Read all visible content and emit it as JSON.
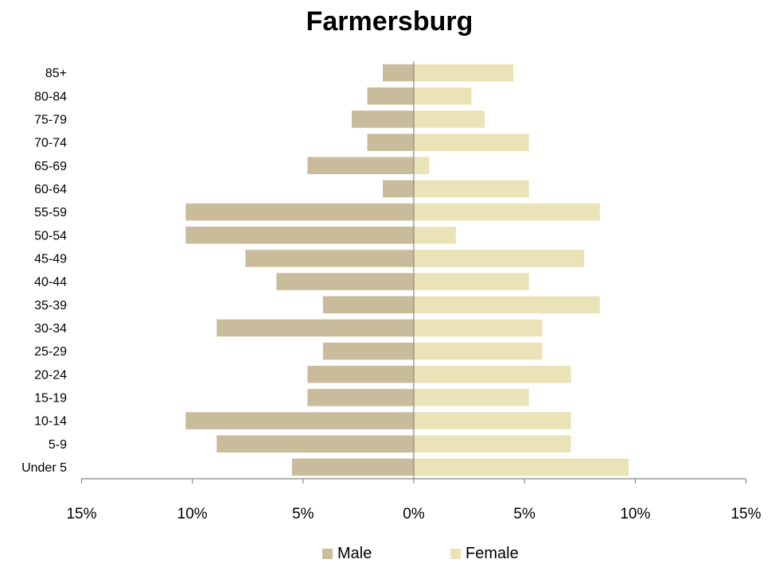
{
  "chart_data": {
    "type": "bar",
    "orientation": "horizontal",
    "title": "Farmersburg",
    "categories": [
      "85+",
      "80-84",
      "75-79",
      "70-74",
      "65-69",
      "60-64",
      "55-59",
      "50-54",
      "45-49",
      "40-44",
      "35-39",
      "30-34",
      "25-29",
      "20-24",
      "15-19",
      "10-14",
      "5-9",
      "Under 5"
    ],
    "series": [
      {
        "name": "Male",
        "color": "#c8bc9b",
        "values": [
          1.4,
          2.1,
          2.8,
          2.1,
          4.8,
          1.4,
          10.3,
          10.3,
          7.6,
          6.2,
          4.1,
          8.9,
          4.1,
          4.8,
          4.8,
          10.3,
          8.9,
          5.5
        ]
      },
      {
        "name": "Female",
        "color": "#ebe3b8",
        "values": [
          4.5,
          2.6,
          3.2,
          5.2,
          0.7,
          5.2,
          8.4,
          1.9,
          7.7,
          5.2,
          8.4,
          5.8,
          5.8,
          7.1,
          5.2,
          7.1,
          7.1,
          9.7
        ]
      }
    ],
    "xlim": [
      -15,
      15
    ],
    "x_ticks": [
      -15,
      -10,
      -5,
      0,
      5,
      10,
      15
    ],
    "x_tick_labels": [
      "15%",
      "10%",
      "5%",
      "0%",
      "5%",
      "10%",
      "15%"
    ],
    "xlabel": "",
    "ylabel": "",
    "grid": false,
    "legend_position": "bottom"
  }
}
